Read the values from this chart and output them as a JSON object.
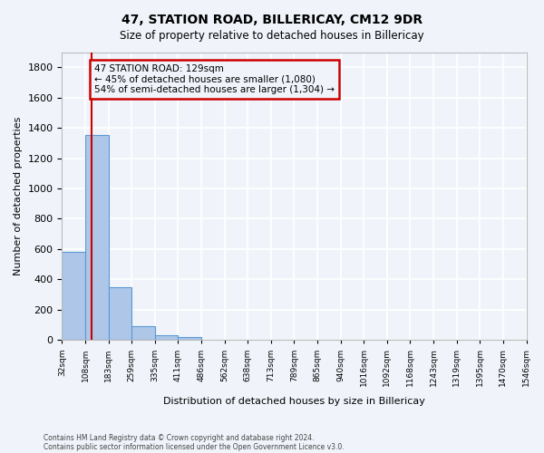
{
  "title": "47, STATION ROAD, BILLERICAY, CM12 9DR",
  "subtitle": "Size of property relative to detached houses in Billericay",
  "xlabel": "Distribution of detached houses by size in Billericay",
  "ylabel": "Number of detached properties",
  "footnote1": "Contains HM Land Registry data © Crown copyright and database right 2024.",
  "footnote2": "Contains public sector information licensed under the Open Government Licence v3.0.",
  "bin_labels": [
    "32sqm",
    "108sqm",
    "183sqm",
    "259sqm",
    "335sqm",
    "411sqm",
    "486sqm",
    "562sqm",
    "638sqm",
    "713sqm",
    "789sqm",
    "865sqm",
    "940sqm",
    "1016sqm",
    "1092sqm",
    "1168sqm",
    "1243sqm",
    "1319sqm",
    "1395sqm",
    "1470sqm",
    "1546sqm"
  ],
  "bar_values": [
    580,
    1350,
    350,
    90,
    30,
    20,
    0,
    0,
    0,
    0,
    0,
    0,
    0,
    0,
    0,
    0,
    0,
    0,
    0,
    0
  ],
  "bar_color": "#aec6e8",
  "bar_edge_color": "#5a9ad5",
  "ylim": [
    0,
    1900
  ],
  "yticks": [
    0,
    200,
    400,
    600,
    800,
    1000,
    1200,
    1400,
    1600,
    1800
  ],
  "property_line_x": 1.26,
  "property_line_color": "#cc0000",
  "annotation_text": "47 STATION ROAD: 129sqm\n← 45% of detached houses are smaller (1,080)\n54% of semi-detached houses are larger (1,304) →",
  "annotation_box_color": "#cc0000",
  "background_color": "#f0f4fa",
  "grid_color": "#ffffff"
}
